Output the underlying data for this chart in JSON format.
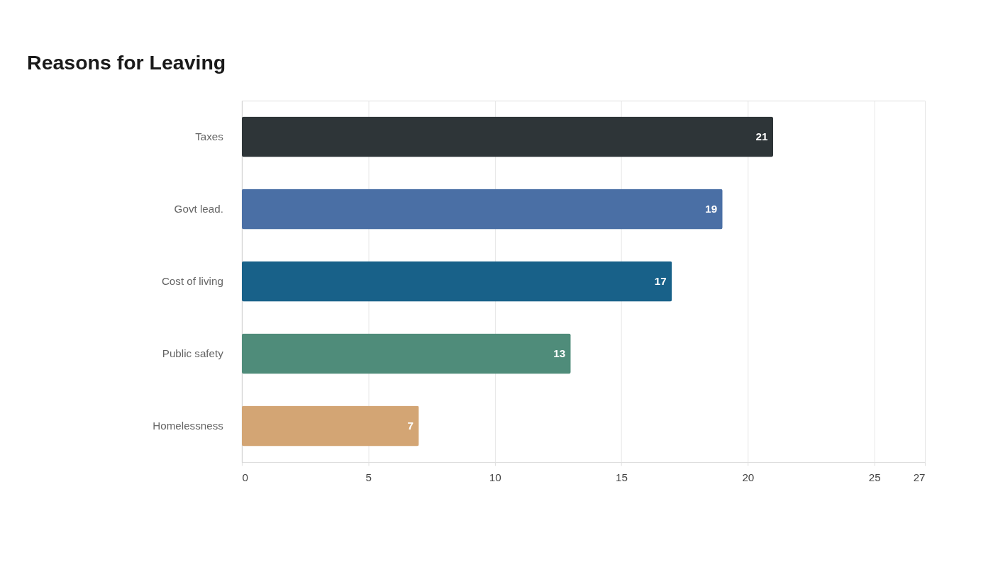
{
  "chart_data": {
    "type": "bar",
    "orientation": "horizontal",
    "title": "Reasons for Leaving",
    "categories": [
      "Taxes",
      "Govt lead.",
      "Cost of living",
      "Public safety",
      "Homelessness"
    ],
    "values": [
      21,
      19,
      17,
      13,
      7
    ],
    "colors": [
      "#2e3538",
      "#4a6fa5",
      "#186189",
      "#4f8c7a",
      "#d3a574"
    ],
    "xlim": [
      0,
      27
    ],
    "xticks": [
      0,
      5,
      10,
      15,
      20,
      25,
      27
    ],
    "grid": "x",
    "data_labels": true
  }
}
